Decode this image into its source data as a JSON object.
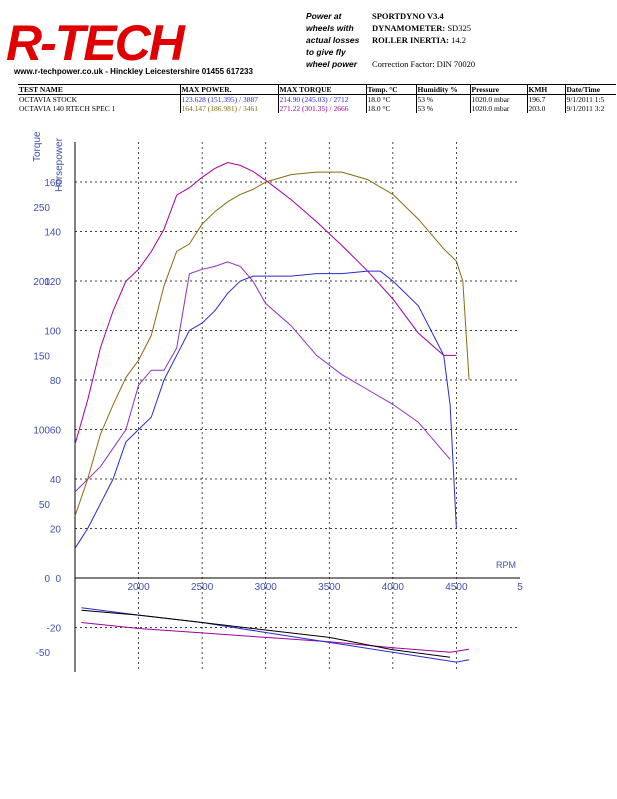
{
  "header": {
    "logo_text": "R-TECH",
    "tagline": "www.r-techpower.co.uk - Hinckley Leicestershire 01455 617233",
    "slogan": [
      "Power at",
      "wheels with",
      "actual losses",
      "to give fly",
      "wheel power"
    ],
    "software": "SPORTDYNO V3.4",
    "dynamometer_label": "DYNAMOMETER:",
    "dynamometer_value": "SD325",
    "inertia_label": "ROLLER INERTIA:",
    "inertia_value": "14.2",
    "correction": "Correction Factor: DIN 70020"
  },
  "results_table": {
    "columns": [
      "TEST NAME",
      "MAX POWER.",
      "MAX TORQUE",
      "Temp. °C",
      "Humidity %",
      "Pressure",
      "KMH",
      "Date/Time"
    ],
    "rows": [
      {
        "name": "OCTAVIA STOCK",
        "power": "123.628 (151.395) / 3887",
        "torque": "214.90 (245.03) / 2712",
        "temp": "18.0 °C",
        "humidity": "53 %",
        "pressure": "1020.0 mbar",
        "kmh": "196.7",
        "datetime": "9/1/2011 1:5"
      },
      {
        "name": "OCTAVIA 140 RTECH SPEC 1",
        "power": "164.147 (186.981) / 3461",
        "torque": "271.22 (301.35) / 2666",
        "temp": "18.0 °C",
        "humidity": "53 %",
        "pressure": "1020.0 mbar",
        "kmh": "203.0",
        "datetime": "9/1/2011 3:2"
      }
    ]
  },
  "chart_data": {
    "type": "line",
    "xlabel": "RPM",
    "ylabel_left": "Torque",
    "ylabel_right": "Horsepower",
    "x_ticks": [
      2000,
      2500,
      3000,
      3500,
      4000,
      4500,
      "5"
    ],
    "xlim": [
      1500,
      5000
    ],
    "torque_ticks": [
      250,
      200,
      150,
      100,
      50,
      0,
      -50
    ],
    "torque_lim": [
      -70,
      290
    ],
    "hp_ticks": [
      160,
      140,
      120,
      100,
      80,
      60,
      40,
      20,
      0,
      -20
    ],
    "hp_lim": [
      -35,
      178
    ],
    "grid": true,
    "colors": {
      "stock_power": "#2a2ad0",
      "spec1_power": "#8a6a10",
      "spec1_torque": "#a000a0",
      "stock_torque": "#9030c0",
      "grid": "#000000",
      "axis_text": "#4050b0"
    },
    "series": [
      {
        "name": "OCTAVIA 140 RTECH SPEC 1",
        "quantity": "torque",
        "axis": "torque",
        "x": [
          1500,
          1600,
          1700,
          1800,
          1900,
          2000,
          2100,
          2200,
          2300,
          2400,
          2500,
          2600,
          2700,
          2800,
          2900,
          3000,
          3200,
          3400,
          3600,
          3800,
          4000,
          4200,
          4400,
          4500
        ],
        "y": [
          90,
          120,
          155,
          180,
          200,
          208,
          220,
          235,
          258,
          263,
          270,
          276,
          280,
          278,
          274,
          268,
          255,
          240,
          224,
          207,
          188,
          165,
          150,
          150
        ]
      },
      {
        "name": "OCTAVIA STOCK",
        "quantity": "torque",
        "axis": "torque",
        "x": [
          1500,
          1700,
          1900,
          2000,
          2100,
          2200,
          2300,
          2400,
          2500,
          2600,
          2700,
          2800,
          2900,
          3000,
          3200,
          3400,
          3600,
          3800,
          4000,
          4200,
          4400,
          4450
        ],
        "y": [
          58,
          75,
          100,
          130,
          140,
          140,
          155,
          205,
          208,
          210,
          213,
          210,
          200,
          185,
          170,
          150,
          137,
          127,
          117,
          105,
          85,
          80
        ]
      },
      {
        "name": "OCTAVIA 140 RTECH SPEC 1",
        "quantity": "power",
        "axis": "hp",
        "x": [
          1500,
          1600,
          1700,
          1800,
          1900,
          2000,
          2100,
          2200,
          2300,
          2400,
          2500,
          2600,
          2700,
          2800,
          2900,
          3000,
          3200,
          3400,
          3600,
          3800,
          4000,
          4200,
          4400,
          4500,
          4550,
          4600
        ],
        "y": [
          25,
          40,
          58,
          70,
          81,
          88,
          98,
          118,
          132,
          135,
          143,
          148,
          152,
          155,
          157,
          160,
          163,
          164,
          164,
          161,
          155,
          145,
          133,
          128,
          120,
          80
        ]
      },
      {
        "name": "OCTAVIA STOCK",
        "quantity": "power",
        "axis": "hp",
        "x": [
          1500,
          1600,
          1700,
          1800,
          1900,
          2000,
          2100,
          2200,
          2300,
          2400,
          2500,
          2600,
          2700,
          2800,
          2900,
          3000,
          3200,
          3400,
          3600,
          3800,
          3900,
          4000,
          4200,
          4400,
          4450,
          4500
        ],
        "y": [
          12,
          20,
          30,
          40,
          55,
          60,
          65,
          80,
          90,
          100,
          103,
          108,
          115,
          120,
          122,
          122,
          122,
          123,
          123,
          124,
          124,
          120,
          110,
          90,
          70,
          20
        ]
      }
    ],
    "loss_curves": [
      {
        "x": [
          1550,
          2000,
          2500,
          3000,
          3500,
          4000,
          4450,
          4600
        ],
        "y": [
          -30,
          -34,
          -37,
          -40,
          -43,
          -47,
          -50,
          -48
        ],
        "color": "#a000a0",
        "axis": "torque"
      },
      {
        "x": [
          1550,
          2000,
          2500,
          3000,
          3500,
          4000,
          4500,
          4600
        ],
        "y": [
          -12,
          -15,
          -18,
          -22,
          -26,
          -30,
          -34,
          -33
        ],
        "color": "#2a2ad0",
        "axis": "hp"
      },
      {
        "x": [
          1550,
          2000,
          2500,
          3000,
          3500,
          4000,
          4450
        ],
        "y": [
          -13,
          -15,
          -18,
          -21,
          -24,
          -29,
          -32
        ],
        "color": "#000000",
        "axis": "hp"
      }
    ]
  }
}
